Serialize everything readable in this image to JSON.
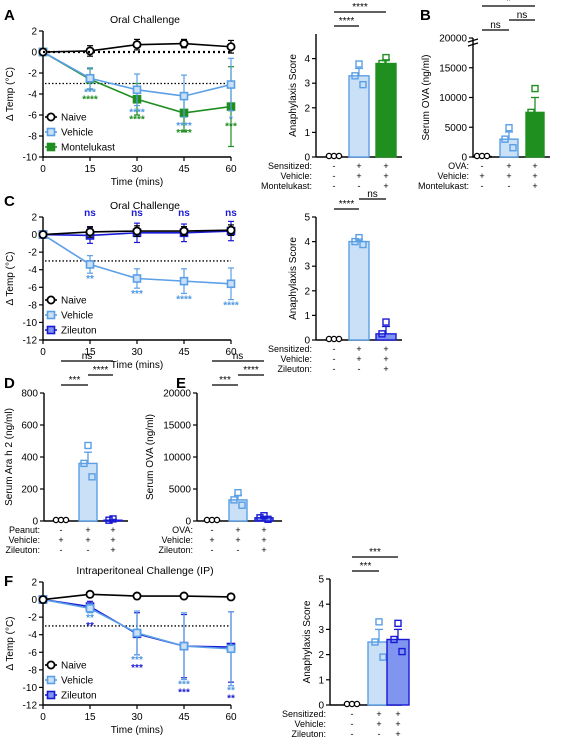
{
  "colors": {
    "naive": "#000000",
    "vehicle": "#5b9fe6",
    "vehicle_fill": "#c9e0f7",
    "montelukast": "#1f8f1f",
    "zileuton": "#1a1ad6",
    "zileuton_fill": "#7f95f0",
    "sig_vehicle": "#4f97e0",
    "sig_mont": "#1d8a1d",
    "sig_zil": "#1a1ad6"
  },
  "panels": {
    "A": {
      "letter": "A"
    },
    "B": {
      "letter": "B"
    },
    "C": {
      "letter": "C"
    },
    "D": {
      "letter": "D"
    },
    "E": {
      "letter": "E"
    },
    "F": {
      "letter": "F"
    }
  },
  "chart_data": [
    {
      "id": "A-temp",
      "type": "line",
      "title": "Oral Challenge",
      "xlabel": "Time (mins)",
      "ylabel": "Δ Temp (°C)",
      "xlim": [
        0,
        60
      ],
      "ylim": [
        -10,
        2
      ],
      "xticks": [
        "0",
        "15",
        "30",
        "45",
        "60"
      ],
      "yticks": [
        "2",
        "0",
        "-2",
        "-4",
        "-6",
        "-8",
        "-10"
      ],
      "threshold": -3,
      "legend_position": "bottom-left",
      "x": [
        0,
        15,
        30,
        45,
        60
      ],
      "series": [
        {
          "name": "Naive",
          "values": [
            0,
            0.1,
            0.7,
            0.8,
            0.5
          ],
          "err": [
            0.1,
            0.5,
            0.5,
            0.4,
            0.6
          ]
        },
        {
          "name": "Vehicle",
          "values": [
            0,
            -2.5,
            -3.6,
            -4.2,
            -3.1
          ],
          "err": [
            0.1,
            1.0,
            1.5,
            2.0,
            2.5
          ]
        },
        {
          "name": "Montelukast",
          "values": [
            0,
            -2.6,
            -4.5,
            -5.8,
            -5.2
          ],
          "err": [
            0.1,
            1.0,
            1.5,
            1.8,
            3.8
          ]
        }
      ],
      "significance": [
        {
          "x": 15,
          "vehicle": "***",
          "montelukast": "****"
        },
        {
          "x": 30,
          "vehicle": "****",
          "montelukast": "****"
        },
        {
          "x": 45,
          "vehicle": "****",
          "montelukast": "****"
        },
        {
          "x": 60,
          "vehicle": "*",
          "montelukast": "***"
        }
      ]
    },
    {
      "id": "A-score",
      "type": "bar",
      "ylabel": "Anaphylaxis Score",
      "ylim": [
        0,
        5
      ],
      "yticks": [
        "0",
        "1",
        "2",
        "3",
        "4"
      ],
      "categories": [
        "Naive",
        "Vehicle",
        "Montelukast"
      ],
      "values": [
        0,
        3.3,
        3.8
      ],
      "err": [
        0,
        0.3,
        0.15
      ],
      "brackets": [
        {
          "from": 0,
          "to": 1,
          "label": "****"
        },
        {
          "from": 0,
          "to": 2,
          "label": "****"
        }
      ],
      "table_rows": [
        {
          "label": "Sensitized:",
          "marks": [
            "-",
            "+",
            "+"
          ]
        },
        {
          "label": "Vehicle:",
          "marks": [
            "-",
            "+",
            "+"
          ]
        },
        {
          "label": "Montelukast:",
          "marks": [
            "-",
            "-",
            "+"
          ]
        }
      ]
    },
    {
      "id": "B-ova",
      "type": "bar",
      "ylabel": "Serum OVA (ng/ml)",
      "ylim": [
        0,
        20000
      ],
      "yticks": [
        "0",
        "5000",
        "10000",
        "15000",
        "20000"
      ],
      "categories": [
        "Naive",
        "Vehicle",
        "Montelukast"
      ],
      "values": [
        80,
        3000,
        7500
      ],
      "err": [
        30,
        1200,
        2500
      ],
      "brackets": [
        {
          "from": 0,
          "to": 1,
          "label": "ns"
        },
        {
          "from": 1,
          "to": 2,
          "label": "ns"
        },
        {
          "from": 0,
          "to": 2,
          "label": "*"
        }
      ],
      "table_rows": [
        {
          "label": "OVA:",
          "marks": [
            "-",
            "+",
            "+"
          ]
        },
        {
          "label": "Vehicle:",
          "marks": [
            "+",
            "+",
            "+"
          ]
        },
        {
          "label": "Montelukast:",
          "marks": [
            "-",
            "-",
            "+"
          ]
        }
      ]
    },
    {
      "id": "C-temp",
      "type": "line",
      "title": "Oral Challenge",
      "xlabel": "Time (mins)",
      "ylabel": "Δ Temp (°C)",
      "xlim": [
        0,
        60
      ],
      "ylim": [
        -12,
        2
      ],
      "xticks": [
        "0",
        "15",
        "30",
        "45",
        "60"
      ],
      "yticks": [
        "2",
        "0",
        "-2",
        "-4",
        "-6",
        "-8",
        "-10",
        "-12"
      ],
      "threshold": -3,
      "legend_position": "bottom-left",
      "x": [
        0,
        15,
        30,
        45,
        60
      ],
      "series": [
        {
          "name": "Naive",
          "values": [
            0,
            0.3,
            0.4,
            0.4,
            0.5
          ],
          "err": [
            0.1,
            0.6,
            0.6,
            0.5,
            0.6
          ]
        },
        {
          "name": "Vehicle",
          "values": [
            0,
            -3.4,
            -5.0,
            -5.3,
            -5.6
          ],
          "err": [
            0.1,
            1.0,
            1.1,
            1.4,
            1.8
          ]
        },
        {
          "name": "Zileuton",
          "values": [
            0,
            -0.1,
            0.2,
            0.2,
            0.4
          ],
          "err": [
            0.1,
            0.9,
            1.1,
            1.0,
            1.1
          ]
        }
      ],
      "significance": [
        {
          "x": 15,
          "zileuton": "ns",
          "vehicle": "**"
        },
        {
          "x": 30,
          "zileuton": "ns",
          "vehicle": "***"
        },
        {
          "x": 45,
          "zileuton": "ns",
          "vehicle": "****"
        },
        {
          "x": 60,
          "zileuton": "ns",
          "vehicle": "****"
        }
      ]
    },
    {
      "id": "C-score",
      "type": "bar",
      "ylabel": "Anaphylaxis Score",
      "ylim": [
        0,
        5
      ],
      "yticks": [
        "0",
        "1",
        "2",
        "3",
        "4",
        "5"
      ],
      "categories": [
        "Naive",
        "Vehicle",
        "Zileuton"
      ],
      "values": [
        0,
        4.0,
        0.25
      ],
      "err": [
        0,
        0.1,
        0.3
      ],
      "brackets": [
        {
          "from": 0,
          "to": 1,
          "label": "****"
        },
        {
          "from": 1,
          "to": 2,
          "label": "ns"
        }
      ],
      "table_rows": [
        {
          "label": "Sensitized:",
          "marks": [
            "-",
            "+",
            "+"
          ]
        },
        {
          "label": "Vehicle:",
          "marks": [
            "-",
            "+",
            "+"
          ]
        },
        {
          "label": "Zileuton:",
          "marks": [
            "-",
            "-",
            "+"
          ]
        }
      ]
    },
    {
      "id": "D-ara",
      "type": "bar",
      "ylabel": "Serum Ara h 2 (ng/ml)",
      "ylim": [
        0,
        800
      ],
      "yticks": [
        "0",
        "200",
        "400",
        "600",
        "800"
      ],
      "categories": [
        "Naive",
        "Vehicle",
        "Zileuton"
      ],
      "values": [
        0,
        360,
        5
      ],
      "err": [
        0,
        70,
        5
      ],
      "brackets": [
        {
          "from": 0,
          "to": 1,
          "label": "***"
        },
        {
          "from": 1,
          "to": 2,
          "label": "****"
        },
        {
          "from": 0,
          "to": 2,
          "label": "ns"
        }
      ],
      "table_rows": [
        {
          "label": "Peanut:",
          "marks": [
            "-",
            "+",
            "+"
          ]
        },
        {
          "label": "Vehicle:",
          "marks": [
            "+",
            "+",
            "+"
          ]
        },
        {
          "label": "Zileuton:",
          "marks": [
            "-",
            "-",
            "+"
          ]
        }
      ]
    },
    {
      "id": "E-ova",
      "type": "bar",
      "ylabel": "Serum OVA (ng/ml)",
      "ylim": [
        0,
        20000
      ],
      "yticks": [
        "0",
        "5000",
        "10000",
        "15000",
        "20000"
      ],
      "categories": [
        "Naive",
        "Vehicle",
        "Zileuton"
      ],
      "values": [
        0,
        3300,
        500
      ],
      "err": [
        0,
        700,
        200
      ],
      "brackets": [
        {
          "from": 0,
          "to": 1,
          "label": "***"
        },
        {
          "from": 1,
          "to": 2,
          "label": "****"
        },
        {
          "from": 0,
          "to": 2,
          "label": "ns"
        }
      ],
      "table_rows": [
        {
          "label": "OVA:",
          "marks": [
            "-",
            "+",
            "+"
          ]
        },
        {
          "label": "Vehicle:",
          "marks": [
            "+",
            "+",
            "+"
          ]
        },
        {
          "label": "Zileuton:",
          "marks": [
            "-",
            "-",
            "+"
          ]
        }
      ]
    },
    {
      "id": "F-temp",
      "type": "line",
      "title": "Intraperitoneal     Challenge (IP)",
      "xlabel": "Time (mins)",
      "ylabel": "Δ Temp (°C)",
      "xlim": [
        0,
        60
      ],
      "ylim": [
        -12,
        2
      ],
      "xticks": [
        "0",
        "15",
        "30",
        "45",
        "60"
      ],
      "yticks": [
        "2",
        "0",
        "-2",
        "-4",
        "-6",
        "-8",
        "-10",
        "-12"
      ],
      "threshold": -3,
      "legend_position": "bottom-left",
      "x": [
        0,
        15,
        30,
        45,
        60
      ],
      "series": [
        {
          "name": "Naive",
          "values": [
            0,
            0.6,
            0.4,
            0.4,
            0.3
          ],
          "err": [
            0.1,
            0.2,
            0.2,
            0.2,
            0.2
          ]
        },
        {
          "name": "Vehicle",
          "values": [
            0,
            -1.0,
            -3.8,
            -5.3,
            -5.6
          ],
          "err": [
            0.1,
            0.5,
            2.5,
            3.8,
            4.2
          ]
        },
        {
          "name": "Zileuton",
          "values": [
            0,
            -0.8,
            -3.9,
            -5.3,
            -5.4
          ],
          "err": [
            0.1,
            0.6,
            2.4,
            3.6,
            4.0
          ]
        }
      ],
      "significance": [
        {
          "x": 15,
          "vehicle": "**",
          "zileuton": "**"
        },
        {
          "x": 30,
          "vehicle": "***",
          "zileuton": "***"
        },
        {
          "x": 45,
          "vehicle": "***",
          "zileuton": "***"
        },
        {
          "x": 60,
          "vehicle": "**",
          "zileuton": "**"
        }
      ]
    },
    {
      "id": "F-score",
      "type": "bar",
      "ylabel": "Anaphylaxis Score",
      "ylim": [
        0,
        5
      ],
      "yticks": [
        "0",
        "1",
        "2",
        "3",
        "4",
        "5"
      ],
      "categories": [
        "Naive",
        "Vehicle",
        "Zileuton"
      ],
      "values": [
        0,
        2.5,
        2.6
      ],
      "err": [
        0,
        0.5,
        0.4
      ],
      "brackets": [
        {
          "from": 0,
          "to": 1,
          "label": "***"
        },
        {
          "from": 0,
          "to": 2,
          "label": "***"
        }
      ],
      "table_rows": [
        {
          "label": "Sensitized:",
          "marks": [
            "-",
            "+",
            "+"
          ]
        },
        {
          "label": "Vehicle:",
          "marks": [
            "-",
            "+",
            "+"
          ]
        },
        {
          "label": "Zileuton:",
          "marks": [
            "-",
            "-",
            "+"
          ]
        }
      ]
    }
  ]
}
